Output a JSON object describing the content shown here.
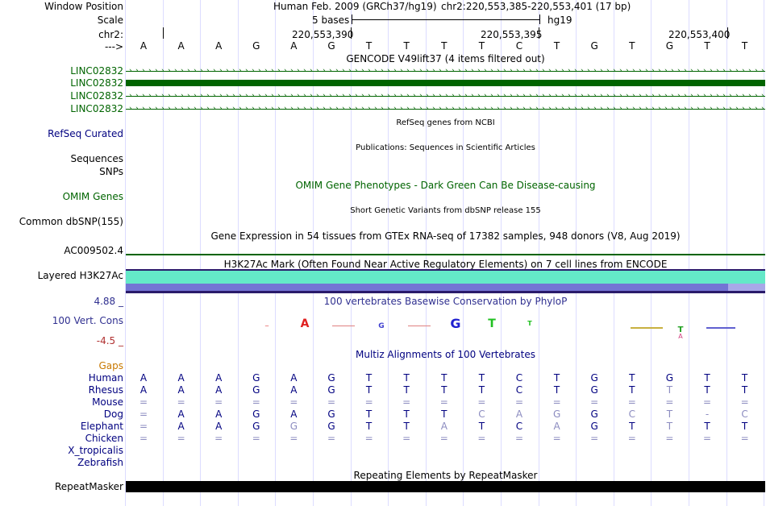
{
  "header": {
    "window_position_label": "Window Position",
    "scale_label": "Scale",
    "chr_label": "chr2:",
    "arrow_label": "--->",
    "assembly": "Human Feb. 2009 (GRCh37/hg19)",
    "position": "chr2:220,553,385-220,553,401 (17 bp)",
    "scale_text": "5 bases",
    "db": "hg19",
    "ticks": [
      "220,553,390",
      "220,553,395",
      "220,553,400"
    ]
  },
  "bases": [
    "A",
    "A",
    "A",
    "G",
    "A",
    "G",
    "T",
    "T",
    "T",
    "T",
    "C",
    "T",
    "G",
    "T",
    "G",
    "T",
    "T"
  ],
  "gencode": {
    "title": "GENCODE V49lift37 (4 items filtered out)",
    "items": [
      "LINC02832",
      "LINC02832",
      "LINC02832",
      "LINC02832"
    ],
    "color": "#006400"
  },
  "refseq": {
    "label": "RefSeq Curated",
    "title": "RefSeq genes from NCBI"
  },
  "publications": {
    "label": "Sequences",
    "title": "Publications: Sequences in Scientific Articles"
  },
  "snps": {
    "label": "SNPs"
  },
  "omim": {
    "label": "OMIM Genes",
    "title": "OMIM Gene Phenotypes - Dark Green Can Be Disease-causing"
  },
  "dbsnp": {
    "label": "Common dbSNP(155)",
    "title": "Short Genetic Variants from dbSNP release 155"
  },
  "gtex": {
    "title": "Gene Expression in 54 tissues from GTEx RNA-seq of 17382 samples, 948 donors (V8, Aug 2019)",
    "label": "AC009502.4"
  },
  "h3k27ac": {
    "title": "H3K27Ac Mark (Often Found Near Active Regulatory Elements) on 7 cell lines from ENCODE",
    "label": "Layered H3K27Ac"
  },
  "conservation": {
    "title": "100 vertebrates Basewise Conservation by PhyloP",
    "label": "100 Vert. Cons",
    "max": "4.88 _",
    "min": "-4.5 _"
  },
  "multiz": {
    "title": "Multiz Alignments of 100 Vertebrates",
    "gaps_label": "Gaps",
    "species": [
      {
        "name": "Human",
        "seq": [
          "A",
          "A",
          "A",
          "G",
          "A",
          "G",
          "T",
          "T",
          "T",
          "T",
          "C",
          "T",
          "G",
          "T",
          "G",
          "T",
          "T"
        ],
        "light": []
      },
      {
        "name": "Rhesus",
        "seq": [
          "A",
          "A",
          "A",
          "G",
          "A",
          "G",
          "T",
          "T",
          "T",
          "T",
          "C",
          "T",
          "G",
          "T",
          "T",
          "T",
          "T"
        ],
        "light": [
          14
        ]
      },
      {
        "name": "Mouse",
        "seq": [
          "=",
          "=",
          "=",
          "=",
          "=",
          "=",
          "=",
          "=",
          "=",
          "=",
          "=",
          "=",
          "=",
          "=",
          "=",
          "=",
          "="
        ],
        "light": []
      },
      {
        "name": "Dog",
        "seq": [
          "=",
          "A",
          "A",
          "G",
          "A",
          "G",
          "T",
          "T",
          "T",
          "C",
          "A",
          "G",
          "G",
          "C",
          "T",
          "-",
          "C"
        ],
        "light": [
          9,
          10,
          11,
          13,
          14,
          15,
          16
        ]
      },
      {
        "name": "Elephant",
        "seq": [
          "=",
          "A",
          "A",
          "G",
          "G",
          "G",
          "T",
          "T",
          "A",
          "T",
          "C",
          "A",
          "G",
          "T",
          "T",
          "T",
          "T"
        ],
        "light": [
          4,
          8,
          11,
          14
        ]
      },
      {
        "name": "Chicken",
        "seq": [
          "=",
          "=",
          "=",
          "=",
          "=",
          "=",
          "=",
          "=",
          "=",
          "=",
          "=",
          "=",
          "=",
          "=",
          "=",
          "=",
          "="
        ],
        "light": []
      },
      {
        "name": "X_tropicalis",
        "seq": [],
        "light": []
      },
      {
        "name": "Zebrafish",
        "seq": [],
        "light": []
      }
    ]
  },
  "repeatmasker": {
    "title": "Repeating Elements by RepeatMasker",
    "label": "RepeatMasker"
  },
  "colors": {
    "navy": "#000080",
    "green": "#006400",
    "orange": "#c87800",
    "teal": "#64e8c8",
    "purple": "#7070d0",
    "gray": "#9090d0"
  }
}
